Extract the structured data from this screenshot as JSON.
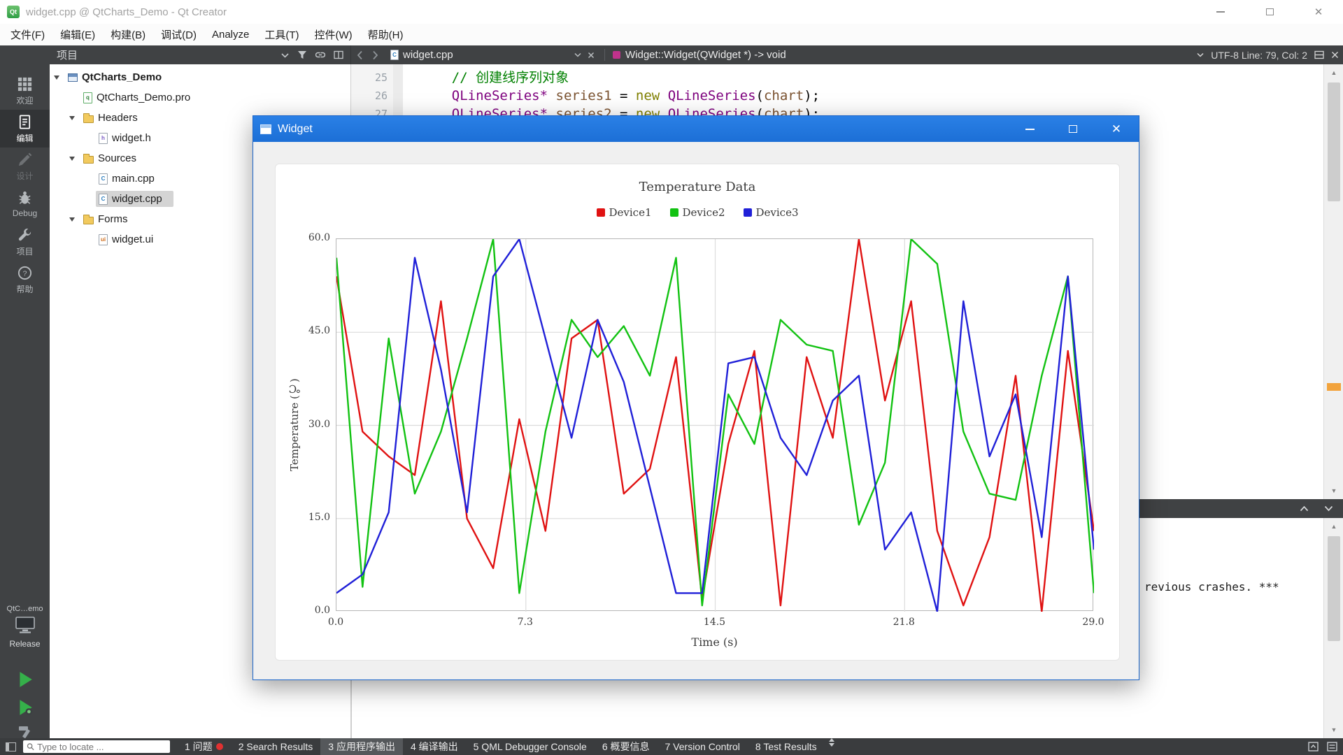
{
  "titlebar": {
    "title": "widget.cpp @ QtCharts_Demo - Qt Creator"
  },
  "menubar": {
    "items": [
      "文件(F)",
      "编辑(E)",
      "构建(B)",
      "调试(D)",
      "Analyze",
      "工具(T)",
      "控件(W)",
      "帮助(H)"
    ]
  },
  "mode_sidebar": {
    "items": [
      {
        "label": "欢迎",
        "icon": "welcome-grid-icon",
        "state": "normal"
      },
      {
        "label": "编辑",
        "icon": "edit-document-icon",
        "state": "active"
      },
      {
        "label": "设计",
        "icon": "design-pencil-icon",
        "state": "disabled"
      },
      {
        "label": "Debug",
        "icon": "debug-bug-icon",
        "state": "normal"
      },
      {
        "label": "项目",
        "icon": "projects-wrench-icon",
        "state": "normal"
      },
      {
        "label": "帮助",
        "icon": "help-icon",
        "state": "normal"
      }
    ],
    "kit_selector": {
      "project_abbrev": "QtC…emo",
      "icon": "desktop-monitor-icon",
      "build_config": "Release"
    },
    "run_buttons": [
      "run-icon",
      "debug-run-icon",
      "build-hammer-icon"
    ]
  },
  "project_pane": {
    "header": "项目",
    "toolbar_icons": [
      "chevron-down-icon",
      "filter-funnel-icon",
      "link-with-editor-icon",
      "split-icon"
    ],
    "tree": [
      {
        "label": "QtCharts_Demo",
        "depth": 0,
        "icon": "project-icon",
        "expanded": true,
        "bold": true
      },
      {
        "label": "QtCharts_Demo.pro",
        "depth": 1,
        "icon": "pro-file-icon"
      },
      {
        "label": "Headers",
        "depth": 1,
        "icon": "folder-icon",
        "expanded": true
      },
      {
        "label": "widget.h",
        "depth": 2,
        "icon": "header-file-icon"
      },
      {
        "label": "Sources",
        "depth": 1,
        "icon": "folder-icon",
        "expanded": true
      },
      {
        "label": "main.cpp",
        "depth": 2,
        "icon": "cpp-file-icon"
      },
      {
        "label": "widget.cpp",
        "depth": 2,
        "icon": "cpp-file-icon",
        "selected": true
      },
      {
        "label": "Forms",
        "depth": 1,
        "icon": "folder-icon",
        "expanded": true
      },
      {
        "label": "widget.ui",
        "depth": 2,
        "icon": "ui-file-icon"
      }
    ]
  },
  "editor": {
    "tab_label": "widget.cpp",
    "symbol_text": "Widget::Widget(QWidget *) -> void",
    "encoding_line_info": "UTF-8 Line: 79, Col: 2",
    "syntax_colors": {
      "plain": "#000000",
      "comment": "#008000",
      "type": "#7e007e",
      "keyword": "#808000",
      "local": "#7a5230"
    },
    "lines": [
      {
        "no": "25",
        "tokens": [
          [
            "    ",
            "plain"
          ],
          [
            "// 创建线序列对象",
            "comment"
          ]
        ]
      },
      {
        "no": "26",
        "tokens": [
          [
            "    ",
            "plain"
          ],
          [
            "QLineSeries*",
            "type"
          ],
          [
            " ",
            "plain"
          ],
          [
            "series1",
            "local"
          ],
          [
            " = ",
            "plain"
          ],
          [
            "new",
            "keyword"
          ],
          [
            " ",
            "plain"
          ],
          [
            "QLineSeries",
            "type"
          ],
          [
            "(",
            "plain"
          ],
          [
            "chart",
            "local"
          ],
          [
            ");",
            "plain"
          ]
        ]
      },
      {
        "no": "27",
        "tokens": [
          [
            "    ",
            "plain"
          ],
          [
            "QLineSeries*",
            "type"
          ],
          [
            " ",
            "plain"
          ],
          [
            "series2",
            "local"
          ],
          [
            " = ",
            "plain"
          ],
          [
            "new",
            "keyword"
          ],
          [
            " ",
            "plain"
          ],
          [
            "QLineSeries",
            "type"
          ],
          [
            "(",
            "plain"
          ],
          [
            "chart",
            "local"
          ],
          [
            ");",
            "plain"
          ]
        ]
      }
    ]
  },
  "output_pane": {
    "visible_text": "revious crashes. ***"
  },
  "statusbar": {
    "locator_placeholder": "Type to locate ...",
    "panes": [
      {
        "label": "1 问题",
        "badge": true
      },
      {
        "label": "2 Search Results"
      },
      {
        "label": "3 应用程序输出",
        "active": true
      },
      {
        "label": "4 编译输出"
      },
      {
        "label": "5 QML Debugger Console"
      },
      {
        "label": "6 概要信息"
      },
      {
        "label": "7 Version Control"
      },
      {
        "label": "8 Test Results"
      }
    ]
  },
  "widget_window": {
    "title": "Widget",
    "accent_color": "#1e76dd"
  },
  "chart_data": {
    "type": "line",
    "title": "Temperature Data",
    "xlabel": "Time (s)",
    "ylabel": "Temperature (℃)",
    "xlim": [
      0,
      29
    ],
    "ylim": [
      0,
      60
    ],
    "x_ticks": [
      "0.0",
      "7.3",
      "14.5",
      "21.8",
      "29.0"
    ],
    "y_ticks": [
      "0.0",
      "15.0",
      "30.0",
      "45.0",
      "60.0"
    ],
    "grid": true,
    "legend_position": "top",
    "x": [
      0,
      1,
      2,
      3,
      4,
      5,
      6,
      7,
      8,
      9,
      10,
      11,
      12,
      13,
      14,
      15,
      16,
      17,
      18,
      19,
      20,
      21,
      22,
      23,
      24,
      25,
      26,
      27,
      28,
      29
    ],
    "series": [
      {
        "name": "Device1",
        "color": "#e01212",
        "values": [
          54,
          29,
          25,
          22,
          50,
          15,
          7,
          31,
          13,
          44,
          47,
          19,
          23,
          41,
          2,
          27,
          42,
          1,
          41,
          28,
          60,
          34,
          50,
          13,
          1,
          12,
          38,
          0,
          42,
          13
        ]
      },
      {
        "name": "Device2",
        "color": "#12c212",
        "values": [
          57,
          4,
          44,
          19,
          29,
          44,
          60,
          3,
          29,
          47,
          41,
          46,
          38,
          57,
          1,
          35,
          27,
          47,
          43,
          42,
          14,
          24,
          60,
          56,
          29,
          19,
          18,
          38,
          54,
          3
        ]
      },
      {
        "name": "Device3",
        "color": "#2020d8",
        "values": [
          3,
          6,
          16,
          57,
          39,
          16,
          54,
          60,
          44,
          28,
          47,
          37,
          20,
          3,
          3,
          40,
          41,
          28,
          22,
          34,
          38,
          10,
          16,
          0,
          50,
          25,
          35,
          12,
          54,
          10
        ]
      }
    ]
  }
}
